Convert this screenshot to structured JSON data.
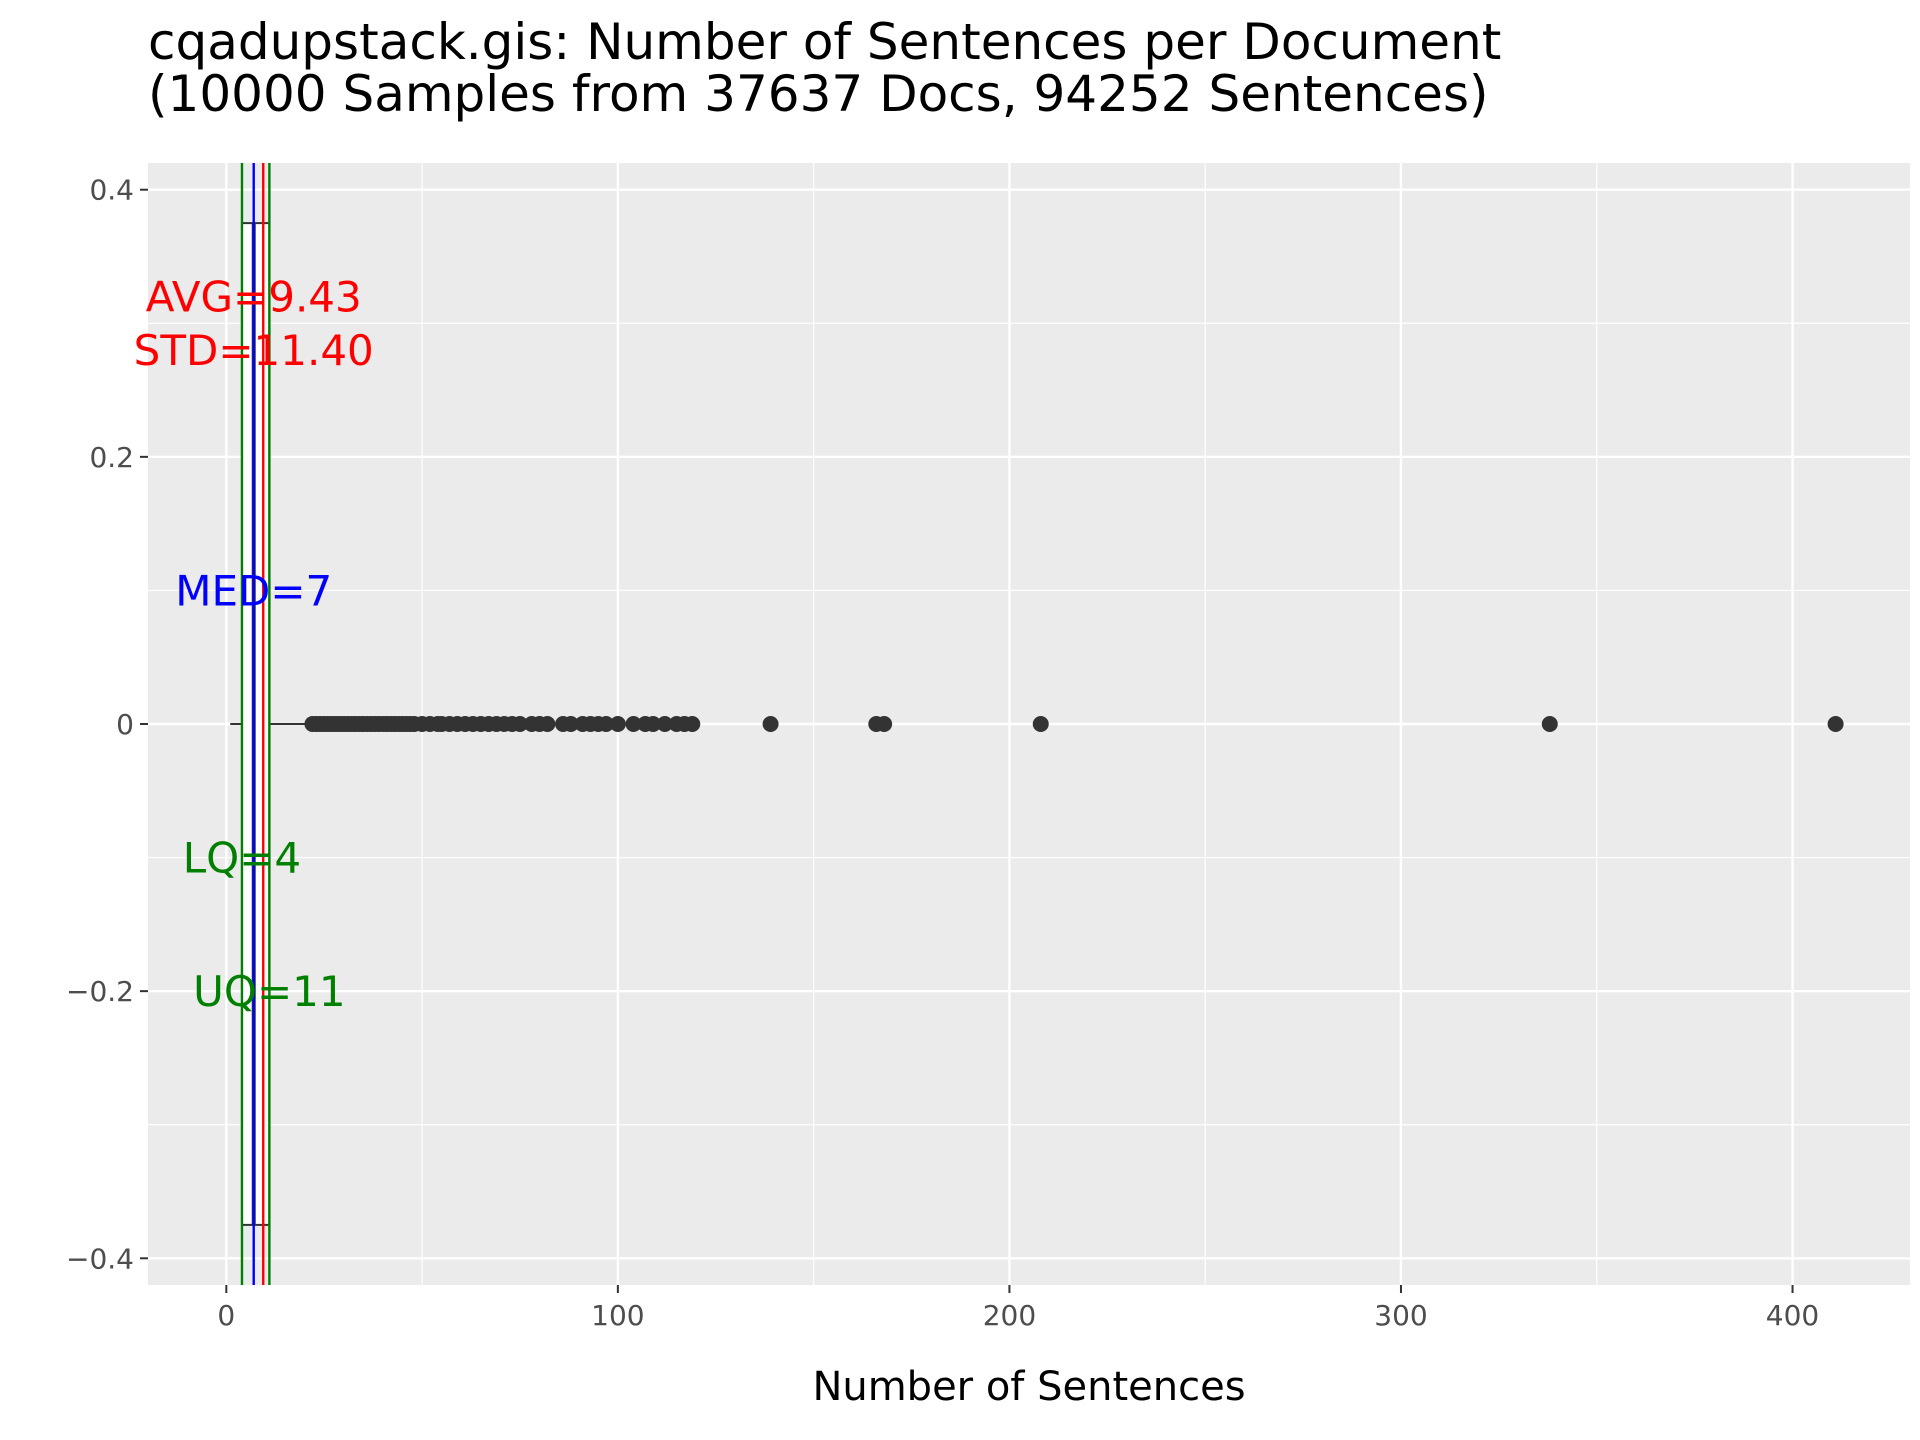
{
  "chart_data": {
    "type": "boxplot",
    "title": "cqadupstack.gis: Number of Sentences per Document",
    "subtitle": "(10000 Samples from 37637 Docs, 94252 Sentences)",
    "xlabel": "Number of Sentences",
    "ylabel": "",
    "xlim": [
      -20,
      430
    ],
    "ylim": [
      -0.42,
      0.42
    ],
    "x_ticks": [
      0,
      100,
      200,
      300,
      400
    ],
    "x_tick_labels": [
      "0",
      "100",
      "200",
      "300",
      "400"
    ],
    "y_ticks": [
      0.4,
      0.2,
      0,
      -0.2,
      -0.4
    ],
    "y_tick_labels": [
      "0.4",
      "0.2",
      "0",
      "−0.2",
      "−0.4"
    ],
    "grid": true,
    "box": {
      "y": 0,
      "half_height": 0.375,
      "whisker_low": 1,
      "q1": 4,
      "median": 7,
      "q3": 11,
      "whisker_high": 21
    },
    "outliers": [
      22,
      23,
      24,
      25,
      26,
      27,
      28,
      29,
      30,
      31,
      32,
      33,
      34,
      35,
      36,
      37,
      38,
      39,
      40,
      41,
      42,
      43,
      44,
      45,
      46,
      47,
      48,
      50,
      52,
      54,
      55,
      57,
      59,
      61,
      63,
      65,
      67,
      69,
      71,
      73,
      75,
      78,
      80,
      82,
      86,
      88,
      91,
      93,
      95,
      97,
      100,
      104,
      107,
      109,
      112,
      115,
      117,
      119,
      139,
      166,
      168,
      208,
      338,
      411
    ],
    "reference_lines": [
      {
        "name": "LQ",
        "value": 4,
        "color": "#008000"
      },
      {
        "name": "UQ",
        "value": 11,
        "color": "#008000"
      },
      {
        "name": "MED",
        "value": 7,
        "color": "#0000ff"
      },
      {
        "name": "AVG",
        "value": 9.43,
        "color": "#ff0000"
      }
    ],
    "annotations": [
      {
        "text": "AVG=9.43",
        "x": 7,
        "y": 0.32,
        "color": "#ff0000"
      },
      {
        "text": "STD=11.40",
        "x": 7,
        "y": 0.28,
        "color": "#ff0000"
      },
      {
        "text": "MED=7",
        "x": 7,
        "y": 0.1,
        "color": "#0000ff"
      },
      {
        "text": "LQ=4",
        "x": 4,
        "y": -0.1,
        "color": "#008000"
      },
      {
        "text": "UQ=11",
        "x": 11,
        "y": -0.2,
        "color": "#008000"
      }
    ],
    "colors": {
      "panel_background": "#ebebeb",
      "grid": "#ffffff",
      "points": "#333333",
      "tick_text": "#4d4d4d"
    }
  }
}
